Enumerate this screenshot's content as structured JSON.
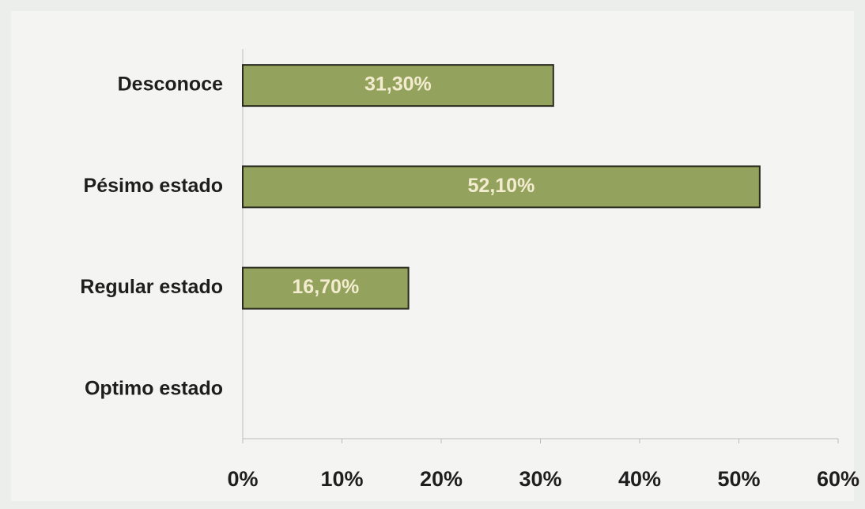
{
  "chart_data": {
    "type": "bar",
    "orientation": "horizontal",
    "categories": [
      "Desconoce",
      "Pésimo estado",
      "Regular estado",
      "Optimo estado"
    ],
    "values": [
      31.3,
      52.1,
      16.7,
      0
    ],
    "value_labels": [
      "31,30%",
      "52,10%",
      "16,70%",
      null
    ],
    "color": "#93a25c",
    "xlim": [
      0,
      60
    ],
    "xticks": [
      {
        "value": 0,
        "label": "0%"
      },
      {
        "value": 10,
        "label": "10%"
      },
      {
        "value": 20,
        "label": "20%"
      },
      {
        "value": 30,
        "label": "30%"
      },
      {
        "value": 40,
        "label": "40%"
      },
      {
        "value": 50,
        "label": "50%"
      },
      {
        "value": 60,
        "label": "60%"
      }
    ],
    "grid": false
  }
}
